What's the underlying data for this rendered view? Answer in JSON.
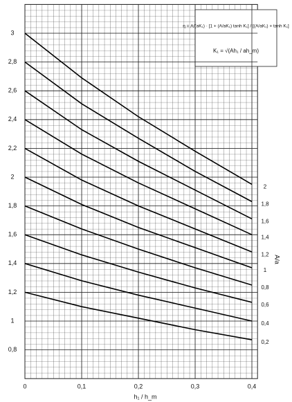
{
  "chart_data": {
    "type": "line",
    "formula": "η = A/(aK₁) · [1 + (A/aK₁) tanh K₁] / [(A/aK₁) + tanh K₁]",
    "formula_k": "K₁ = √(Ah₁ / ah_m)",
    "x_label": "h₁ / h_m",
    "legend_title": "A/a",
    "x": [
      0,
      0.1,
      0.2,
      0.3,
      0.4
    ],
    "series": [
      {
        "name": "2",
        "color": "#000",
        "values": [
          3.0,
          2.69,
          2.42,
          2.18,
          1.95
        ]
      },
      {
        "name": "1,8",
        "color": "#000",
        "values": [
          2.8,
          2.51,
          2.27,
          2.04,
          1.83
        ]
      },
      {
        "name": "1,6",
        "color": "#000",
        "values": [
          2.6,
          2.33,
          2.11,
          1.91,
          1.71
        ]
      },
      {
        "name": "1,4",
        "color": "#000",
        "values": [
          2.4,
          2.16,
          1.96,
          1.78,
          1.6
        ]
      },
      {
        "name": "1,2",
        "color": "#000",
        "values": [
          2.2,
          1.98,
          1.8,
          1.64,
          1.48
        ]
      },
      {
        "name": "1",
        "color": "#000",
        "values": [
          2.0,
          1.81,
          1.65,
          1.51,
          1.37
        ]
      },
      {
        "name": "0,8",
        "color": "#000",
        "values": [
          1.8,
          1.64,
          1.5,
          1.37,
          1.25
        ]
      },
      {
        "name": "0,6",
        "color": "#000",
        "values": [
          1.6,
          1.46,
          1.34,
          1.23,
          1.13
        ]
      },
      {
        "name": "0,4",
        "color": "#000",
        "values": [
          1.4,
          1.28,
          1.18,
          1.09,
          1.0
        ]
      },
      {
        "name": "0,2",
        "color": "#000",
        "values": [
          1.2,
          1.1,
          1.02,
          0.94,
          0.87
        ]
      }
    ],
    "xlim": [
      0,
      0.41
    ],
    "ylim": [
      0.6,
      3.2
    ],
    "xticks": [
      0,
      {
        "value": 0.1,
        "label": "0,1"
      },
      {
        "value": 0.2,
        "label": "0,2"
      },
      {
        "value": 0.3,
        "label": "0,3"
      },
      {
        "value": 0.4,
        "label": "0,4"
      }
    ],
    "yticks": [
      {
        "value": 0.8,
        "label": "0,8"
      },
      1,
      {
        "value": 1.2,
        "label": "1,2"
      },
      {
        "value": 1.4,
        "label": "1,4"
      },
      {
        "value": 1.6,
        "label": "1,6"
      },
      {
        "value": 1.8,
        "label": "1,8"
      },
      2,
      {
        "value": 2.2,
        "label": "2,2"
      },
      {
        "value": 2.4,
        "label": "2,4"
      },
      {
        "value": 2.6,
        "label": "2,6"
      },
      {
        "value": 2.8,
        "label": "2,8"
      },
      3
    ],
    "grid": true
  }
}
